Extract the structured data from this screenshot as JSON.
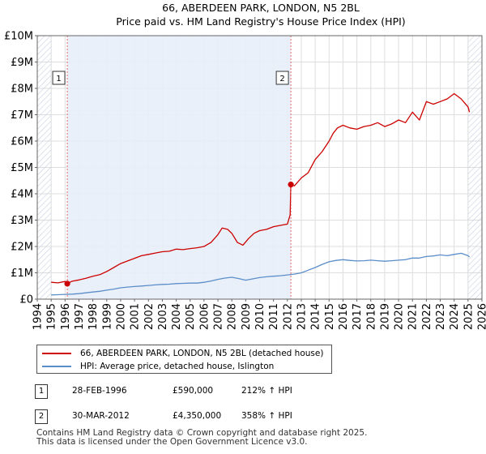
{
  "chart_data": {
    "type": "line",
    "title": "66, ABERDEEN PARK, LONDON, N5 2BL",
    "subtitle": "Price paid vs. HM Land Registry's House Price Index (HPI)",
    "xlabel": "",
    "ylabel": "",
    "xlim": [
      1994,
      2026
    ],
    "ylim": [
      0,
      10000000
    ],
    "x_ticks": [
      "1994",
      "1995",
      "1996",
      "1997",
      "1998",
      "1999",
      "2000",
      "2001",
      "2002",
      "2003",
      "2004",
      "2005",
      "2006",
      "2007",
      "2008",
      "2009",
      "2010",
      "2011",
      "2012",
      "2013",
      "2014",
      "2015",
      "2016",
      "2017",
      "2018",
      "2019",
      "2020",
      "2021",
      "2022",
      "2023",
      "2024",
      "2025",
      "2026"
    ],
    "y_ticks": [
      {
        "value": 0,
        "label": "£0"
      },
      {
        "value": 1000000,
        "label": "£1M"
      },
      {
        "value": 2000000,
        "label": "£2M"
      },
      {
        "value": 3000000,
        "label": "£3M"
      },
      {
        "value": 4000000,
        "label": "£4M"
      },
      {
        "value": 5000000,
        "label": "£5M"
      },
      {
        "value": 6000000,
        "label": "£6M"
      },
      {
        "value": 7000000,
        "label": "£7M"
      },
      {
        "value": 8000000,
        "label": "£8M"
      },
      {
        "value": 9000000,
        "label": "£9M"
      },
      {
        "value": 10000000,
        "label": "£10M"
      }
    ],
    "shaded_regions": [
      {
        "from": 1994,
        "to": 1995.0,
        "color": "#e8eef8",
        "hatched": true
      },
      {
        "from": 1996.16,
        "to": 2012.25,
        "color": "#e8eef8",
        "hatched": false
      },
      {
        "from": 2025.0,
        "to": 2026,
        "color": "#e8eef8",
        "hatched": true
      }
    ],
    "series": [
      {
        "name": "66, ABERDEEN PARK, LONDON, N5 2BL (detached house)",
        "color": "#cc0000",
        "x": [
          1995.0,
          1995.5,
          1996.0,
          1996.16,
          1996.5,
          1997.0,
          1997.5,
          1998.0,
          1998.5,
          1999.0,
          1999.5,
          2000.0,
          2000.5,
          2001.0,
          2001.5,
          2002.0,
          2002.5,
          2003.0,
          2003.5,
          2004.0,
          2004.5,
          2005.0,
          2005.5,
          2006.0,
          2006.5,
          2007.0,
          2007.3,
          2007.7,
          2008.0,
          2008.4,
          2008.8,
          2009.2,
          2009.6,
          2010.0,
          2010.5,
          2011.0,
          2011.5,
          2012.0,
          2012.2,
          2012.25,
          2012.5,
          2013.0,
          2013.5,
          2014.0,
          2014.5,
          2015.0,
          2015.3,
          2015.6,
          2016.0,
          2016.5,
          2017.0,
          2017.5,
          2018.0,
          2018.5,
          2019.0,
          2019.5,
          2020.0,
          2020.5,
          2021.0,
          2021.5,
          2022.0,
          2022.5,
          2023.0,
          2023.5,
          2024.0,
          2024.5,
          2025.0,
          2025.1
        ],
        "values": [
          640000,
          620000,
          670000,
          590000,
          680000,
          730000,
          790000,
          870000,
          930000,
          1050000,
          1200000,
          1350000,
          1450000,
          1550000,
          1650000,
          1700000,
          1750000,
          1800000,
          1820000,
          1900000,
          1880000,
          1920000,
          1950000,
          2000000,
          2150000,
          2450000,
          2700000,
          2650000,
          2500000,
          2150000,
          2050000,
          2300000,
          2500000,
          2600000,
          2650000,
          2750000,
          2800000,
          2850000,
          3200000,
          4350000,
          4300000,
          4600000,
          4800000,
          5300000,
          5600000,
          6000000,
          6300000,
          6500000,
          6600000,
          6500000,
          6450000,
          6550000,
          6600000,
          6700000,
          6550000,
          6650000,
          6800000,
          6700000,
          7100000,
          6800000,
          7500000,
          7400000,
          7500000,
          7600000,
          7800000,
          7600000,
          7300000,
          7100000
        ]
      },
      {
        "name": "HPI: Average price, detached house, Islington",
        "color": "#5b8ec9",
        "x": [
          1995.0,
          1995.5,
          1996.0,
          1996.5,
          1997.0,
          1997.5,
          1998.0,
          1998.5,
          1999.0,
          1999.5,
          2000.0,
          2000.5,
          2001.0,
          2001.5,
          2002.0,
          2002.5,
          2003.0,
          2003.5,
          2004.0,
          2004.5,
          2005.0,
          2005.5,
          2006.0,
          2006.5,
          2007.0,
          2007.5,
          2008.0,
          2008.5,
          2009.0,
          2009.5,
          2010.0,
          2010.5,
          2011.0,
          2011.5,
          2012.0,
          2012.5,
          2013.0,
          2013.5,
          2014.0,
          2014.5,
          2015.0,
          2015.5,
          2016.0,
          2016.5,
          2017.0,
          2017.5,
          2018.0,
          2018.5,
          2019.0,
          2019.5,
          2020.0,
          2020.5,
          2021.0,
          2021.5,
          2022.0,
          2022.5,
          2023.0,
          2023.5,
          2024.0,
          2024.5,
          2025.0,
          2025.1
        ],
        "values": [
          160000,
          170000,
          180000,
          190000,
          210000,
          240000,
          270000,
          300000,
          340000,
          380000,
          430000,
          460000,
          480000,
          500000,
          520000,
          540000,
          560000,
          570000,
          590000,
          600000,
          610000,
          610000,
          640000,
          690000,
          750000,
          800000,
          830000,
          780000,
          720000,
          770000,
          820000,
          850000,
          870000,
          890000,
          920000,
          950000,
          1000000,
          1100000,
          1200000,
          1320000,
          1420000,
          1470000,
          1500000,
          1470000,
          1450000,
          1460000,
          1480000,
          1460000,
          1440000,
          1460000,
          1480000,
          1500000,
          1560000,
          1560000,
          1620000,
          1640000,
          1680000,
          1650000,
          1700000,
          1740000,
          1650000,
          1600000
        ]
      }
    ],
    "annotations": [
      {
        "label": "1",
        "x": 1996.16,
        "value": 590000
      },
      {
        "label": "2",
        "x": 2012.25,
        "value": 4350000
      }
    ]
  },
  "legend": {
    "property_label": "66, ABERDEEN PARK, LONDON, N5 2BL (detached house)",
    "hpi_label": "HPI: Average price, detached house, Islington",
    "property_color": "#cc0000",
    "hpi_color": "#5b8ec9"
  },
  "transactions": [
    {
      "num": "1",
      "date": "28-FEB-1996",
      "price": "£590,000",
      "hpi": "212% ↑ HPI"
    },
    {
      "num": "2",
      "date": "30-MAR-2012",
      "price": "£4,350,000",
      "hpi": "358% ↑ HPI"
    }
  ],
  "footer": {
    "line1": "Contains HM Land Registry data © Crown copyright and database right 2025.",
    "line2": "This data is licensed under the Open Government Licence v3.0."
  }
}
